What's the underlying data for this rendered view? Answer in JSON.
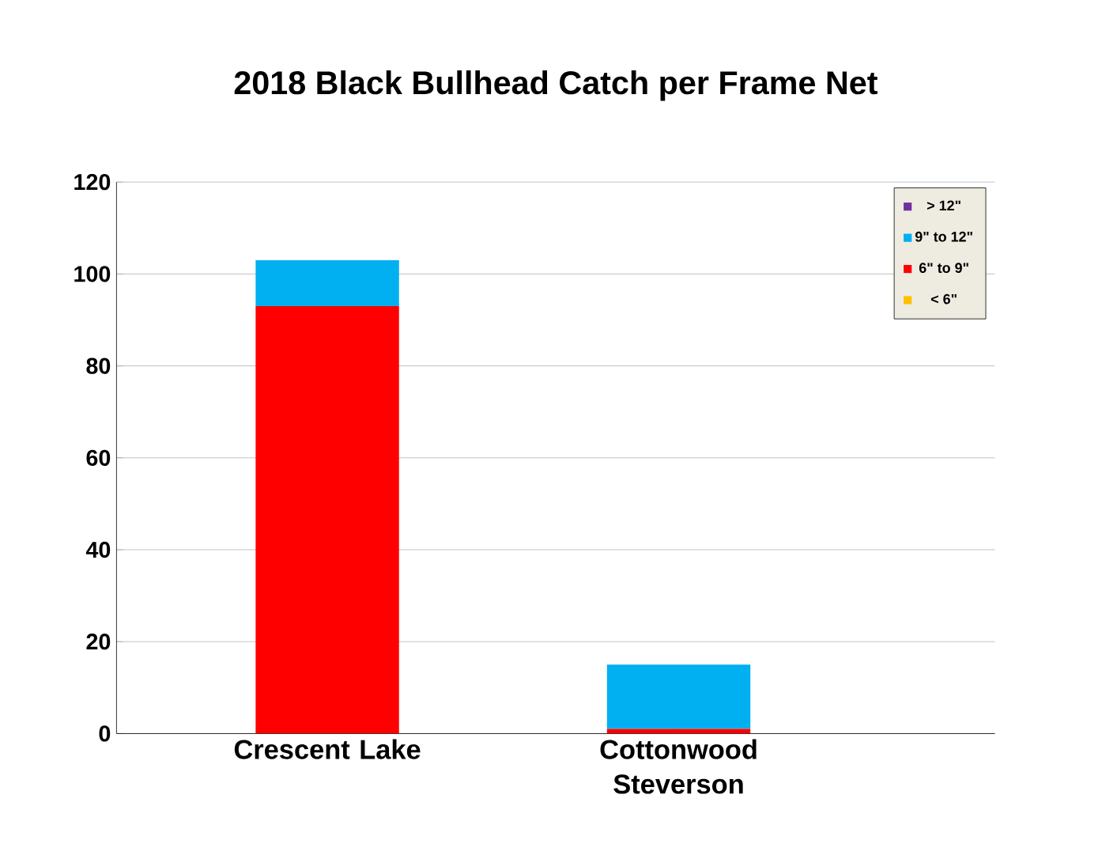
{
  "chart_data": {
    "type": "bar",
    "title": "2018 Black Bullhead Catch per Frame Net",
    "categories": [
      "Crescent Lake",
      "Cottonwood Steverson"
    ],
    "stacked": true,
    "series": [
      {
        "name": "< 6\"",
        "color": "#ffc000",
        "values": [
          0,
          0
        ]
      },
      {
        "name": "6\" to 9\"",
        "color": "#ff0000",
        "values": [
          93,
          1
        ]
      },
      {
        "name": "9\" to 12\"",
        "color": "#00b0f0",
        "values": [
          10,
          14
        ]
      },
      {
        "name": "> 12\"",
        "color": "#7030a0",
        "values": [
          0,
          0
        ]
      }
    ],
    "ylim": [
      0,
      120
    ],
    "yticks": [
      0,
      20,
      40,
      60,
      80,
      100,
      120
    ],
    "grid": "y",
    "legend": "top right"
  }
}
